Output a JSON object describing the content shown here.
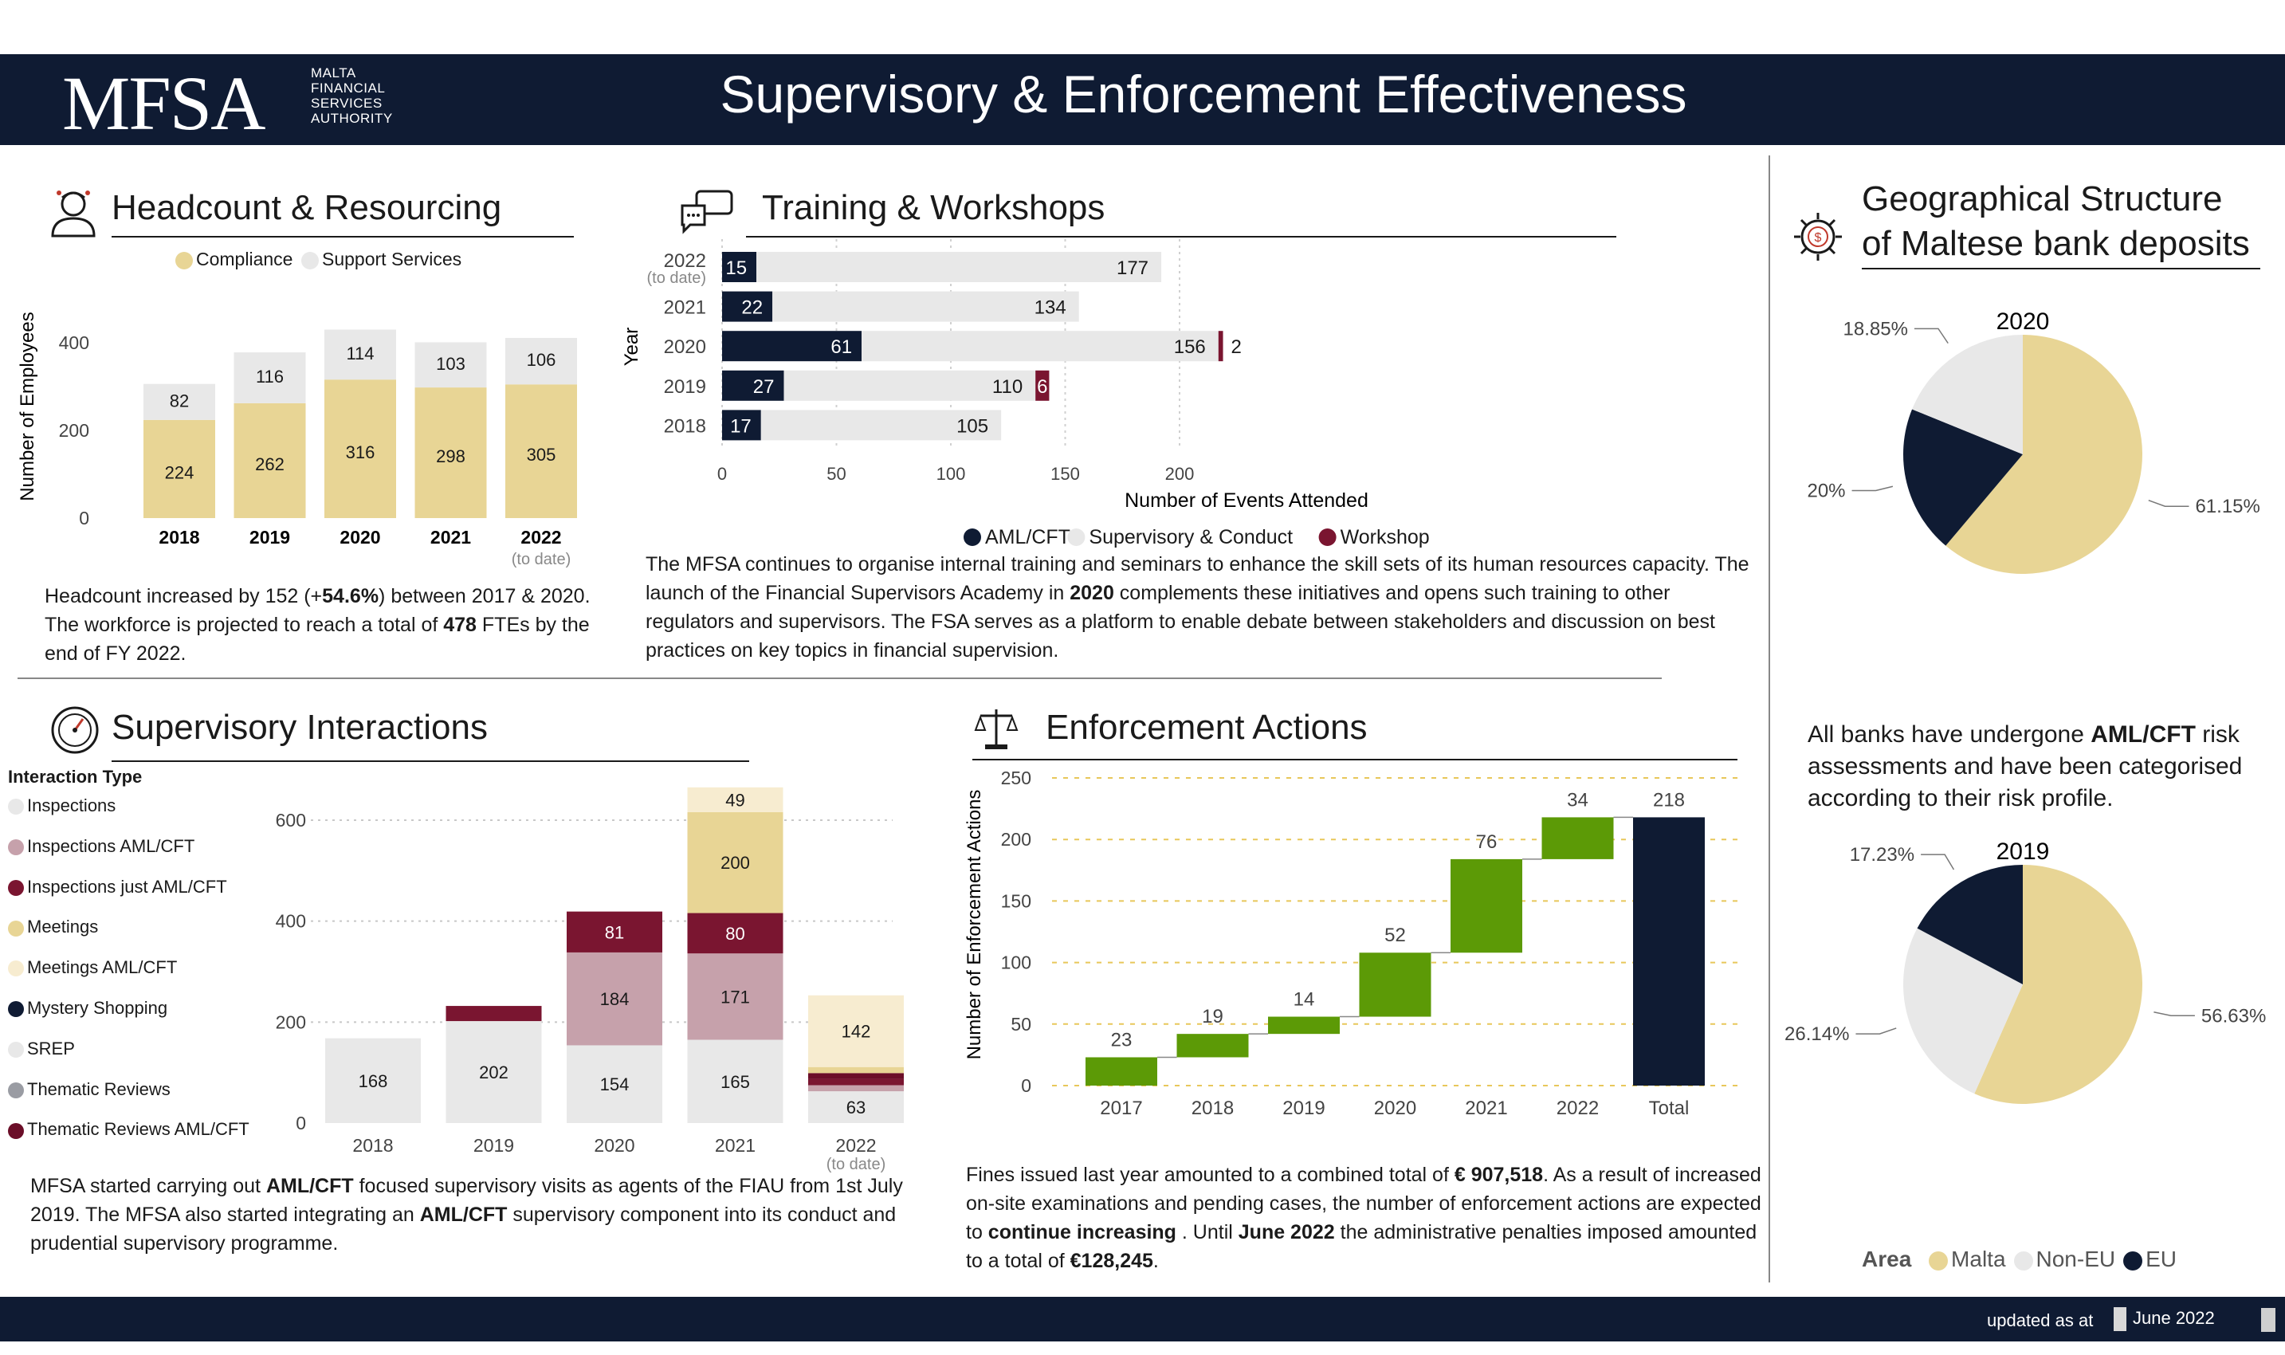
{
  "header": {
    "logo": "MFSA",
    "logo_sub": [
      "MALTA",
      "FINANCIAL",
      "SERVICES",
      "AUTHORITY"
    ],
    "title": "Supervisory & Enforcement Effectiveness"
  },
  "headcount": {
    "title": "Headcount & Resourcing",
    "text_html": "Headcount increased by 152 (+<b>54.6%</b>) between 2017 &amp; 2020. The workforce is projected to reach a total of <b>478</b> FTEs by the end of FY 2022."
  },
  "training": {
    "title": "Training & Workshops",
    "text_html": "The MFSA continues to organise internal training and seminars to enhance the skill sets of its human resources capacity. The launch of the Financial Supervisors Academy in <b>2020</b> complements these initiatives and opens such training to other regulators and supervisors. The FSA serves as a platform to enable debate between stakeholders and discussion on best practices on key topics in financial supervision."
  },
  "supervisory": {
    "title": "Supervisory Interactions",
    "legend_title": "Interaction Type",
    "text_html": "MFSA started carrying out <b>AML/CFT</b> focused supervisory visits as agents of the FIAU from 1st July 2019. The MFSA also started integrating an <b>AML/CFT</b> supervisory component into its conduct and prudential supervisory programme."
  },
  "enforcement": {
    "title": "Enforcement Actions",
    "text_html": "Fines issued last year amounted to a combined total of <b>€ 907,518</b>. As a result of increased on-site examinations and pending cases, the number of enforcement actions are expected to <b>continue increasing</b> . Until <b>June 2022</b> the administrative penalties imposed amounted to a total of <b>€128,245</b>."
  },
  "geo": {
    "title_line1": "Geographical Structure",
    "title_line2": "of Maltese bank deposits",
    "text_html": "All banks have undergone <b>AML/CFT</b> risk assessments and have been categorised according to their risk profile.",
    "legend_title": "Area"
  },
  "footer": {
    "label": "updated as at",
    "date": "June 2022"
  },
  "colors": {
    "navy": "#0f1b33",
    "gold": "#e8d595",
    "lightgrey": "#e8e8e8",
    "maroon": "#7a1530",
    "mauve": "#c6a1ab",
    "cream": "#f7ecd0",
    "green": "#5c9a06",
    "grey": "#9a9ca3"
  },
  "chart_data": [
    {
      "id": "headcount",
      "type": "bar",
      "stacked": true,
      "categories": [
        "2018",
        "2019",
        "2020",
        "2021",
        "2022"
      ],
      "category_notes": [
        "",
        "",
        "",
        "",
        "(to date)"
      ],
      "series": [
        {
          "name": "Compliance",
          "values": [
            224,
            262,
            316,
            298,
            305
          ],
          "color": "#e8d595"
        },
        {
          "name": "Support Services",
          "values": [
            82,
            116,
            114,
            103,
            106
          ],
          "color": "#e8e8e8"
        }
      ],
      "ylabel": "Number of Employees",
      "yticks": [
        0,
        200,
        400
      ],
      "ylim": [
        0,
        450
      ],
      "grid": false,
      "legend": "top"
    },
    {
      "id": "training",
      "type": "bar",
      "orientation": "horizontal",
      "stacked": true,
      "categories": [
        "2022",
        "2021",
        "2020",
        "2019",
        "2018"
      ],
      "category_notes": [
        "(to date)",
        "",
        "",
        "",
        ""
      ],
      "series": [
        {
          "name": "AML/CFT",
          "values": [
            15,
            22,
            61,
            27,
            17
          ],
          "color": "#0f1b33"
        },
        {
          "name": "Supervisory & Conduct",
          "values": [
            177,
            134,
            156,
            110,
            105
          ],
          "color": "#e8e8e8"
        },
        {
          "name": "Workshop",
          "values": [
            0,
            0,
            2,
            6,
            0
          ],
          "color": "#7a1530"
        }
      ],
      "xlabel": "Number of Events Attended",
      "ylabel": "Year",
      "xticks": [
        0,
        50,
        100,
        150,
        200
      ],
      "xlim": [
        0,
        200
      ],
      "grid": true,
      "legend": "bottom"
    },
    {
      "id": "supervisory",
      "type": "bar",
      "stacked": true,
      "categories": [
        "2018",
        "2019",
        "2020",
        "2021",
        "2022"
      ],
      "category_notes": [
        "",
        "",
        "",
        "",
        "(to date)"
      ],
      "series": [
        {
          "name": "Inspections",
          "values": [
            0,
            0,
            0,
            0,
            0
          ],
          "color": "#e8e8e8"
        },
        {
          "name": "Inspections  AML/CFT",
          "values": [
            0,
            0,
            184,
            171,
            12
          ],
          "color": "#c6a1ab"
        },
        {
          "name": "Inspections just AML/CFT",
          "values": [
            0,
            30,
            81,
            80,
            12
          ],
          "color": "#7a1530"
        },
        {
          "name": "Meetings",
          "values": [
            0,
            0,
            0,
            200,
            12
          ],
          "color": "#e8d595"
        },
        {
          "name": "Meetings  AML/CFT",
          "values": [
            0,
            0,
            0,
            49,
            142
          ],
          "color": "#f7ecd0"
        },
        {
          "name": "Mystery Shopping",
          "values": [
            0,
            0,
            0,
            0,
            0
          ],
          "color": "#0f1b33"
        },
        {
          "name": "SREP",
          "values": [
            168,
            202,
            154,
            165,
            63
          ],
          "color": "#e8e8e8"
        },
        {
          "name": "Thematic Reviews",
          "values": [
            0,
            0,
            0,
            0,
            0
          ],
          "color": "#9a9ca3"
        },
        {
          "name": "Thematic Reviews   AML/CFT",
          "values": [
            0,
            0,
            0,
            0,
            12
          ],
          "color": "#6b0e28"
        }
      ],
      "yticks": [
        0,
        200,
        400,
        600
      ],
      "ylim": [
        0,
        680
      ],
      "grid": true,
      "legend": "left"
    },
    {
      "id": "enforcement",
      "type": "bar",
      "subtype": "waterfall",
      "categories": [
        "2017",
        "2018",
        "2019",
        "2020",
        "2021",
        "2022",
        "Total"
      ],
      "values": [
        23,
        19,
        14,
        52,
        76,
        34,
        218
      ],
      "ylabel": "Number of Enforcement Actions",
      "yticks": [
        0,
        50,
        100,
        150,
        200,
        250
      ],
      "ylim": [
        0,
        250
      ],
      "grid": true,
      "colors": {
        "increase": "#5c9a06",
        "total": "#0f1b33"
      }
    },
    {
      "id": "geo-2020",
      "type": "pie",
      "title": "2020",
      "slices": [
        {
          "name": "Malta",
          "value": 61.15,
          "label": "61.15%",
          "color": "#e8d595"
        },
        {
          "name": "EU",
          "value": 20,
          "label": "20%",
          "color": "#0f1b33"
        },
        {
          "name": "Non-EU",
          "value": 18.85,
          "label": "18.85%",
          "color": "#e8e8e8"
        }
      ]
    },
    {
      "id": "geo-2019",
      "type": "pie",
      "title": "2019",
      "slices": [
        {
          "name": "Malta",
          "value": 56.63,
          "label": "56.63%",
          "color": "#e8d595"
        },
        {
          "name": "Non-EU",
          "value": 26.14,
          "label": "26.14%",
          "color": "#e8e8e8"
        },
        {
          "name": "EU",
          "value": 17.23,
          "label": "17.23%",
          "color": "#0f1b33"
        }
      ],
      "legend": [
        {
          "name": "Malta",
          "color": "#e8d595"
        },
        {
          "name": "Non-EU",
          "color": "#e8e8e8"
        },
        {
          "name": "EU",
          "color": "#0f1b33"
        }
      ]
    }
  ]
}
